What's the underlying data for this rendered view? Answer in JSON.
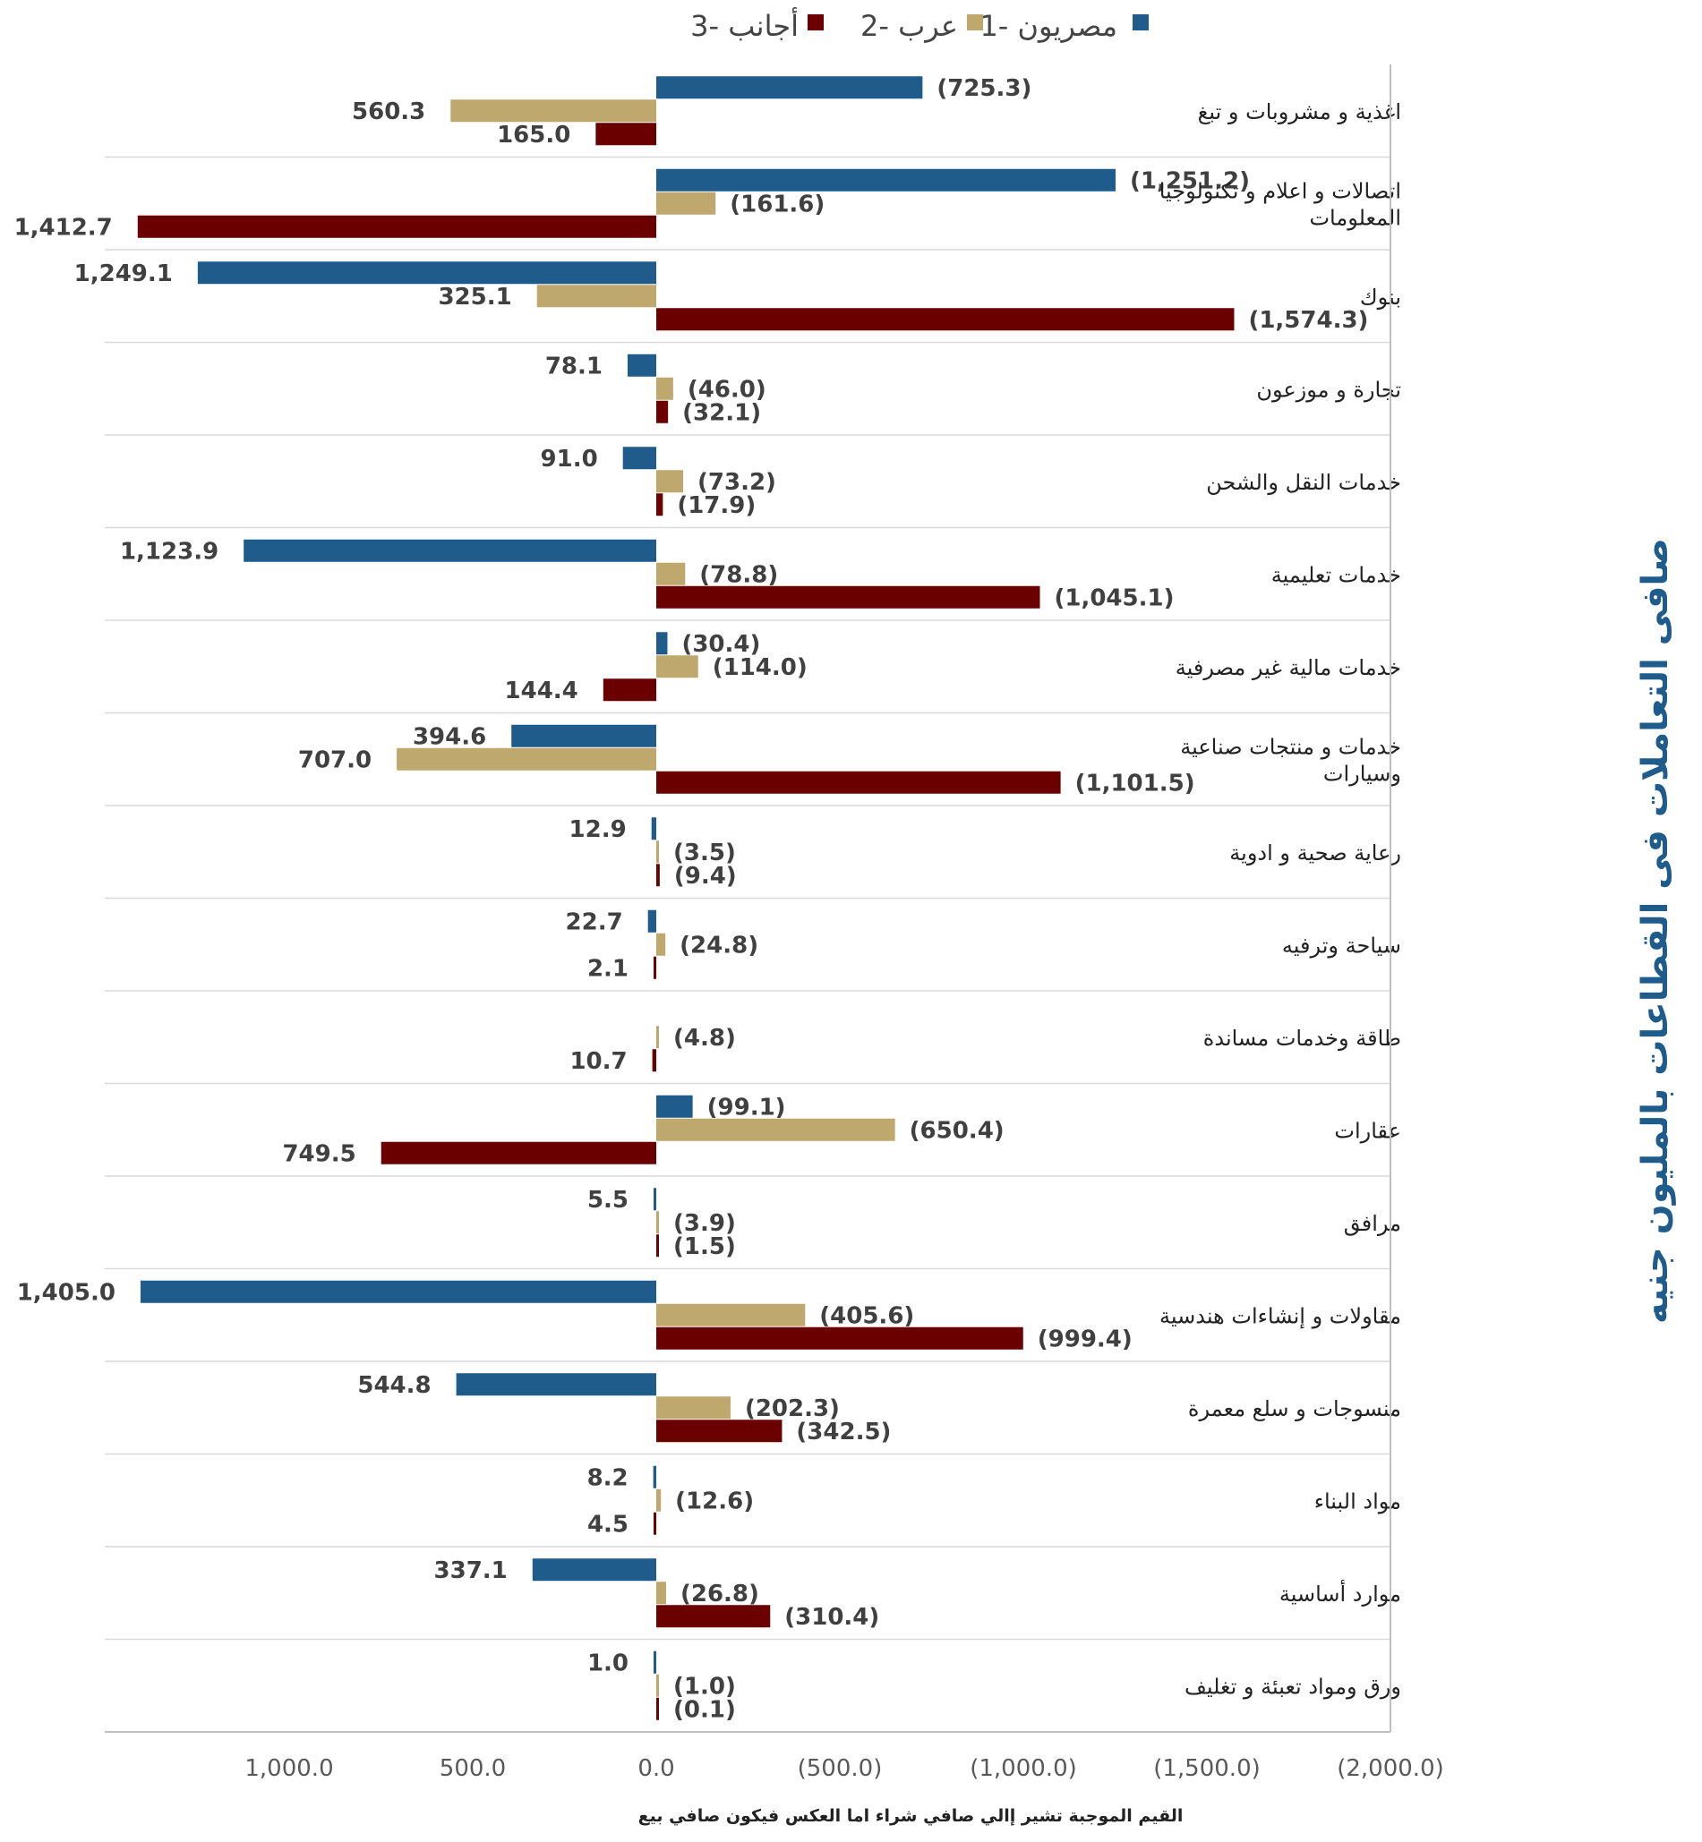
{
  "chart_data": {
    "type": "bar",
    "orientation": "horizontal",
    "title": "صافى التعاملات فى القطاعات بالمليون جنيه",
    "xlabel": "القيم الموجبة تشير إالي صافي شراء اما العكس فيكون صافي بيع",
    "x_reversed": true,
    "xlim": [
      1405.0,
      -2000.0
    ],
    "x_ticks": [
      {
        "value": 1000,
        "label": "1,000.0"
      },
      {
        "value": 500,
        "label": "500.0"
      },
      {
        "value": 0,
        "label": "0.0"
      },
      {
        "value": -500,
        "label": "(500.0)"
      },
      {
        "value": -1000,
        "label": "(1,000.0)"
      },
      {
        "value": -1500,
        "label": "(1,500.0)"
      },
      {
        "value": -2000,
        "label": "(2,000.0)"
      }
    ],
    "legend_position": "top",
    "categories": [
      "اغذية و مشروبات و تبغ",
      "اتصالات و اعلام و تكنولوجيا المعلومات",
      "بنوك",
      "تجارة و موزعون",
      "خدمات النقل والشحن",
      "خدمات تعليمية",
      "خدمات مالية غير مصرفية",
      "خدمات و منتجات صناعية وسيارات",
      "رعاية صحية و ادوية",
      "سياحة وترفيه",
      "طاقة وخدمات مساندة",
      "عقارات",
      "مرافق",
      "مقاولات و إنشاءات هندسية",
      "منسوجات و سلع معمرة",
      "مواد البناء",
      "موارد أساسية",
      "ورق ومواد تعبئة و تغليف"
    ],
    "category_lines": [
      [
        "اغذية و مشروبات و تبغ"
      ],
      [
        "اتصالات و اعلام و تكنولوجيا",
        "المعلومات"
      ],
      [
        "بنوك"
      ],
      [
        "تجارة و موزعون"
      ],
      [
        "خدمات النقل والشحن"
      ],
      [
        "خدمات تعليمية"
      ],
      [
        "خدمات مالية غير مصرفية"
      ],
      [
        "خدمات و منتجات صناعية",
        "وسيارات"
      ],
      [
        "رعاية صحية و ادوية"
      ],
      [
        "سياحة وترفيه"
      ],
      [
        "طاقة وخدمات مساندة"
      ],
      [
        "عقارات"
      ],
      [
        "مرافق"
      ],
      [
        "مقاولات و إنشاءات هندسية"
      ],
      [
        "منسوجات و سلع معمرة"
      ],
      [
        "مواد البناء"
      ],
      [
        "موارد أساسية"
      ],
      [
        "ورق ومواد تعبئة و تغليف"
      ]
    ],
    "series": [
      {
        "name": "مصريون -1",
        "color": "#1f5c8b",
        "values": [
          -725.3,
          -1251.2,
          1249.1,
          78.1,
          91.0,
          1123.9,
          -30.4,
          394.6,
          12.9,
          22.7,
          0,
          -99.1,
          5.5,
          1405.0,
          544.8,
          8.2,
          337.1,
          1.0
        ],
        "labels": [
          "(725.3)",
          "(1,251.2)",
          "1,249.1",
          "78.1",
          "91.0",
          "1,123.9",
          "(30.4)",
          "394.6",
          "12.9",
          "22.7",
          "",
          "(99.1)",
          "5.5",
          "1,405.0",
          "544.8",
          "8.2",
          "337.1",
          "1.0"
        ]
      },
      {
        "name": "عرب -2",
        "color": "#bfa86e",
        "values": [
          560.3,
          -161.6,
          325.1,
          -46.0,
          -73.2,
          -78.8,
          -114.0,
          707.0,
          -3.5,
          -24.8,
          -4.8,
          -650.4,
          -3.9,
          -405.6,
          -202.3,
          -12.6,
          -26.8,
          -1.0
        ],
        "labels": [
          "560.3",
          "(161.6)",
          "325.1",
          "(46.0)",
          "(73.2)",
          "(78.8)",
          "(114.0)",
          "707.0",
          "(3.5)",
          "(24.8)",
          "(4.8)",
          "(650.4)",
          "(3.9)",
          "(405.6)",
          "(202.3)",
          "(12.6)",
          "(26.8)",
          "(1.0)"
        ]
      },
      {
        "name": "أجانب -3",
        "color": "#6b0000",
        "values": [
          165.0,
          1412.7,
          -1574.3,
          -32.1,
          -17.9,
          -1045.1,
          144.4,
          -1101.5,
          -9.4,
          2.1,
          10.7,
          749.5,
          -1.5,
          -999.4,
          -342.5,
          4.5,
          -310.4,
          -0.1
        ],
        "labels": [
          "165.0",
          "1,412.7",
          "(1,574.3)",
          "(32.1)",
          "(17.9)",
          "(1,045.1)",
          "144.4",
          "(1,101.5)",
          "(9.4)",
          "2.1",
          "10.7",
          "749.5",
          "(1.5)",
          "(999.4)",
          "(342.5)",
          "4.5",
          "(310.4)",
          "(0.1)"
        ]
      }
    ]
  }
}
